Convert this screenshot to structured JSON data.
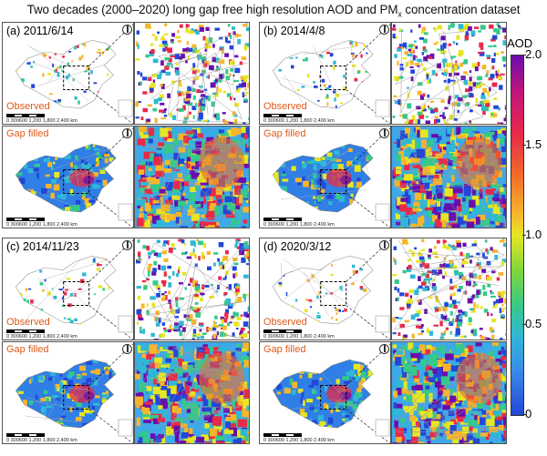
{
  "title_main": "Two decades (2000–2020) long gap free high resolution AOD and PM",
  "title_sub": "x",
  "title_end": " concentration dataset",
  "panels": [
    {
      "label": "(a) 2011/6/14",
      "observed": "Observed",
      "gapfilled": "Gap filled"
    },
    {
      "label": "(b) 2014/4/8",
      "observed": "Observed",
      "gapfilled": "Gap filled"
    },
    {
      "label": "(c) 2014/11/23",
      "observed": "Observed",
      "gapfilled": "Gap filled"
    },
    {
      "label": "(d) 2020/3/12",
      "observed": "Observed",
      "gapfilled": "Gap filled"
    }
  ],
  "scale_text": "0  300600   1,200   1,800   2,400",
  "scale_unit": "km",
  "colorbar": {
    "title": "AOD",
    "ticks": [
      "2.0",
      "1.5",
      "1.0",
      "0.5",
      "0"
    ],
    "colors": [
      "#6a0dad",
      "#e8294a",
      "#f7b52c",
      "#e6e623",
      "#35c98a",
      "#2fb8d6",
      "#2347d8"
    ]
  }
}
